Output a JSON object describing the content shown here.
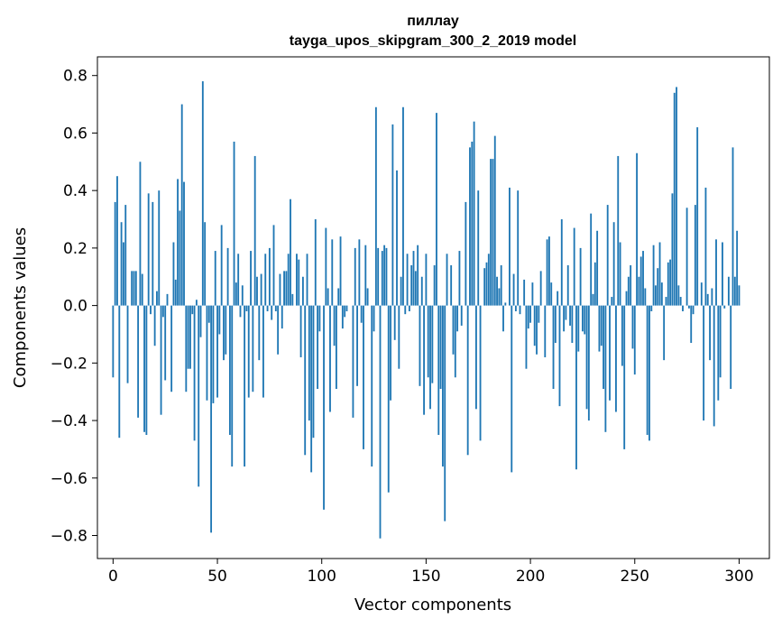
{
  "chart_data": {
    "type": "bar",
    "title": "пиллау",
    "subtitle": "tayga_upos_skipgram_300_2_2019 model",
    "xlabel": "Vector components",
    "ylabel": "Components values",
    "xlim": [
      -7.5,
      314.5
    ],
    "ylim": [
      -0.88,
      0.865
    ],
    "xticks": [
      0,
      50,
      100,
      150,
      200,
      250,
      300
    ],
    "xtick_labels": [
      "0",
      "50",
      "100",
      "150",
      "200",
      "250",
      "300"
    ],
    "yticks": [
      -0.8,
      -0.6,
      -0.4,
      -0.2,
      0.0,
      0.2,
      0.4,
      0.6,
      0.8
    ],
    "ytick_labels": [
      "−0.8",
      "−0.6",
      "−0.4",
      "−0.2",
      "0.0",
      "0.2",
      "0.4",
      "0.6",
      "0.8"
    ],
    "bar_color": "#1f77b4",
    "grid": false,
    "series": [
      {
        "values": [
          -0.25,
          0.36,
          0.45,
          -0.46,
          0.29,
          0.22,
          0.35,
          -0.27,
          0.0,
          0.12,
          0.12,
          0.12,
          -0.39,
          0.5,
          0.11,
          -0.44,
          -0.45,
          0.39,
          -0.03,
          0.36,
          -0.14,
          0.05,
          0.4,
          -0.38,
          -0.04,
          -0.26,
          0.04,
          0.0,
          -0.3,
          0.22,
          0.09,
          0.44,
          0.33,
          0.7,
          0.43,
          -0.3,
          -0.22,
          -0.22,
          -0.03,
          -0.47,
          0.02,
          -0.63,
          -0.11,
          0.78,
          0.29,
          -0.33,
          -0.06,
          -0.79,
          -0.34,
          0.19,
          -0.32,
          -0.1,
          0.28,
          -0.19,
          -0.17,
          0.2,
          -0.45,
          -0.56,
          0.57,
          0.08,
          0.18,
          -0.04,
          0.07,
          -0.56,
          -0.02,
          -0.32,
          0.19,
          -0.3,
          0.52,
          0.1,
          -0.19,
          0.11,
          -0.32,
          0.18,
          -0.02,
          0.2,
          -0.05,
          0.28,
          -0.02,
          -0.17,
          0.11,
          -0.08,
          0.12,
          0.12,
          0.18,
          0.37,
          0.04,
          0.0,
          0.18,
          0.16,
          -0.18,
          0.1,
          -0.52,
          0.18,
          -0.4,
          -0.58,
          -0.46,
          0.3,
          -0.29,
          -0.09,
          0.0,
          -0.71,
          0.27,
          0.06,
          -0.37,
          0.23,
          -0.14,
          -0.29,
          0.06,
          0.24,
          -0.08,
          -0.04,
          -0.02,
          0.0,
          0.0,
          -0.39,
          0.2,
          -0.28,
          0.23,
          -0.06,
          -0.5,
          0.21,
          0.06,
          0.0,
          -0.56,
          -0.09,
          0.69,
          0.2,
          -0.81,
          0.19,
          0.21,
          0.2,
          -0.65,
          -0.33,
          0.63,
          -0.12,
          0.47,
          -0.22,
          0.1,
          0.69,
          -0.03,
          0.18,
          -0.02,
          0.14,
          0.19,
          0.12,
          0.21,
          -0.28,
          0.1,
          -0.38,
          0.18,
          -0.25,
          -0.36,
          -0.27,
          0.14,
          0.67,
          -0.45,
          -0.29,
          -0.56,
          -0.75,
          0.18,
          0.0,
          0.14,
          -0.17,
          -0.25,
          -0.09,
          0.19,
          -0.07,
          0.0,
          0.36,
          -0.52,
          0.55,
          0.57,
          0.64,
          -0.36,
          0.4,
          -0.47,
          0.0,
          0.13,
          0.15,
          0.18,
          0.51,
          0.51,
          0.59,
          0.1,
          0.06,
          0.14,
          -0.09,
          0.01,
          0.0,
          0.41,
          -0.58,
          0.11,
          -0.02,
          0.4,
          -0.03,
          0.0,
          0.09,
          -0.22,
          -0.08,
          -0.06,
          0.08,
          -0.14,
          -0.17,
          -0.06,
          0.12,
          0.0,
          -0.18,
          0.23,
          0.24,
          0.08,
          -0.29,
          -0.13,
          0.05,
          -0.35,
          0.3,
          -0.09,
          -0.05,
          0.14,
          -0.07,
          -0.13,
          0.27,
          -0.57,
          -0.16,
          0.2,
          -0.09,
          -0.1,
          -0.36,
          -0.4,
          0.32,
          0.04,
          0.15,
          0.26,
          -0.16,
          -0.14,
          -0.29,
          -0.44,
          0.35,
          -0.33,
          0.03,
          0.29,
          -0.37,
          0.52,
          0.22,
          -0.21,
          -0.5,
          0.05,
          0.1,
          0.14,
          -0.15,
          -0.24,
          0.53,
          0.1,
          0.17,
          0.19,
          0.06,
          -0.45,
          -0.47,
          -0.02,
          0.21,
          0.07,
          0.13,
          0.22,
          0.08,
          -0.19,
          0.03,
          0.15,
          0.16,
          0.39,
          0.74,
          0.76,
          0.07,
          0.03,
          -0.02,
          0.0,
          0.34,
          -0.01,
          -0.13,
          -0.03,
          0.35,
          0.62,
          0.0,
          0.08,
          -0.4,
          0.41,
          0.04,
          -0.19,
          0.06,
          -0.42,
          0.23,
          -0.33,
          -0.25,
          0.22,
          -0.01,
          0.0,
          0.1,
          -0.29,
          0.55,
          0.1,
          0.26,
          0.07
        ]
      }
    ]
  }
}
